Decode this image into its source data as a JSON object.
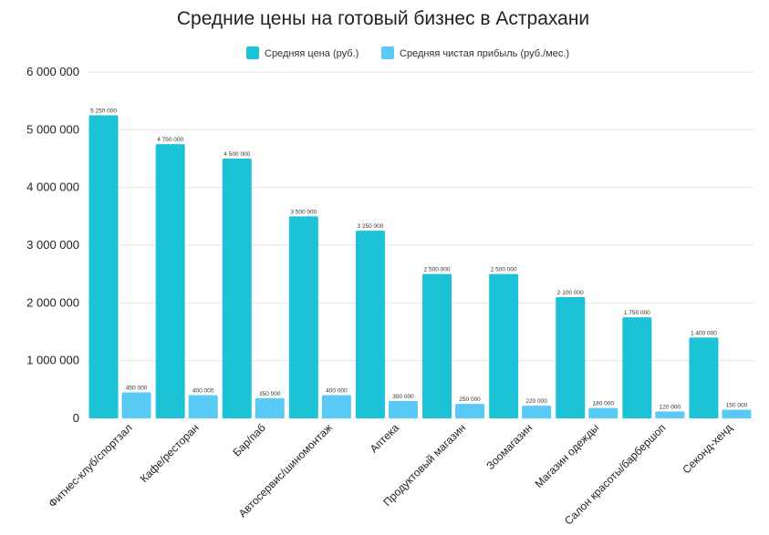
{
  "chart_data": {
    "type": "bar",
    "title": "Средние цены на готовый бизнес в Астрахани",
    "xlabel": "",
    "ylabel": "",
    "ylim": [
      0,
      6000000
    ],
    "yticks": [
      0,
      1000000,
      2000000,
      3000000,
      4000000,
      5000000,
      6000000
    ],
    "ytick_labels": [
      "0",
      "1 000 000",
      "2 000 000",
      "3 000 000",
      "4 000 000",
      "5 000 000",
      "6 000 000"
    ],
    "grid": true,
    "legend_position": "top",
    "categories": [
      "Фитнес-клуб/спортзал",
      "Кафе/ресторан",
      "Бар/паб",
      "Автосервис/шиномонтаж",
      "Аптека",
      "Продуктовый магазин",
      "Зоомагазин",
      "Магазин одежды",
      "Салон красоты/барбершоп",
      "Секонд-хенд"
    ],
    "series": [
      {
        "name": "Средняя цена (руб.)",
        "color": "#1cc3d6",
        "values": [
          5250000,
          4750000,
          4500000,
          3500000,
          3250000,
          2500000,
          2500000,
          2100000,
          1750000,
          1400000
        ],
        "labels": [
          "5 250 000",
          "4 750 000",
          "4 500 000",
          "3 500 000",
          "3 250 000",
          "2 500 000",
          "2 500 000",
          "2 100 000",
          "1 750 000",
          "1 400 000"
        ]
      },
      {
        "name": "Средняя чистая прибыль (руб./мес.)",
        "color": "#59c9f5",
        "values": [
          450000,
          400000,
          350000,
          400000,
          300000,
          250000,
          220000,
          180000,
          120000,
          150000
        ],
        "labels": [
          "450 000",
          "400 000",
          "350 000",
          "400 000",
          "300 000",
          "250 000",
          "220 000",
          "180 000",
          "120 000",
          "150 000"
        ]
      }
    ]
  }
}
